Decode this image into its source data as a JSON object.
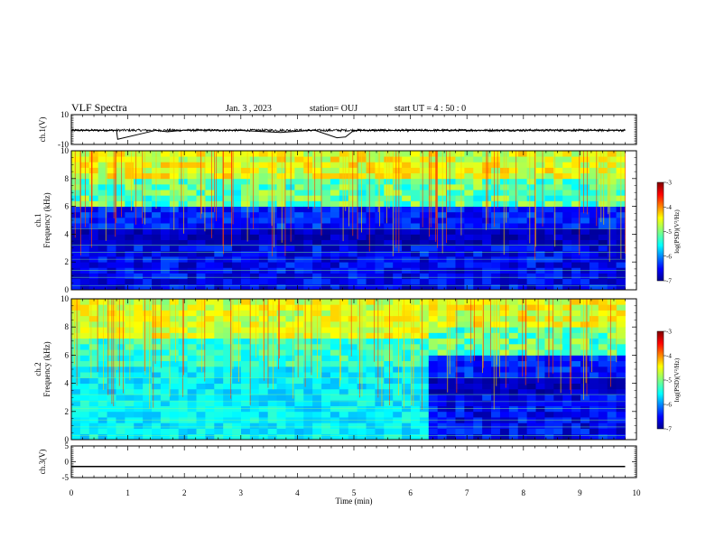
{
  "header": {
    "title": "VLF Spectra",
    "date": "Jan. 3 , 2023",
    "station": "station= OUJ",
    "start": "start UT = 4 : 50 : 0"
  },
  "chart_data": [
    {
      "type": "line",
      "panel": "ch1_waveform",
      "ylabel": "ch.1(V)",
      "ylim": [
        -10,
        10
      ],
      "yticks": [
        "10",
        "-10"
      ],
      "x": [
        0,
        0.8,
        0.82,
        1.5,
        1.7,
        2.0,
        3.0,
        3.7,
        4.3,
        4.7,
        4.85,
        5.0,
        6.2,
        7.5,
        8.5,
        9.3,
        9.8
      ],
      "values": [
        -0.5,
        -0.5,
        -6.5,
        -0.5,
        -1.5,
        -0.4,
        -0.6,
        -2.0,
        -0.4,
        -5.5,
        -5.0,
        -0.5,
        -0.6,
        -0.5,
        -0.4,
        -0.5,
        -0.5
      ]
    },
    {
      "type": "heatmap",
      "panel": "ch1_spectrogram",
      "ylabel": "ch.1\nFrequency (kHz)",
      "ylim": [
        0,
        10
      ],
      "yticks": [
        "0",
        "2",
        "4",
        "6",
        "8",
        "10"
      ],
      "colorbar": {
        "ticks": [
          "-3",
          "-4",
          "-5",
          "-6",
          "-7"
        ],
        "label": "log(PSD)(V²/Hz)",
        "range": [
          -7,
          -3
        ]
      },
      "bands_khz": [
        [
          0,
          1,
          -6.5
        ],
        [
          1,
          2,
          -6.8
        ],
        [
          2,
          3.2,
          -6.6
        ],
        [
          3.2,
          4.5,
          -6.9
        ],
        [
          4.5,
          6,
          -6.4
        ],
        [
          6,
          8,
          -5.0
        ],
        [
          8,
          10,
          -4.4
        ]
      ]
    },
    {
      "type": "heatmap",
      "panel": "ch2_spectrogram",
      "ylabel": "ch.2\nFrequency (kHz)",
      "ylim": [
        0,
        10
      ],
      "yticks": [
        "0",
        "2",
        "4",
        "6",
        "8",
        "10"
      ],
      "colorbar": {
        "ticks": [
          "-3",
          "-4",
          "-5",
          "-6",
          "-7"
        ],
        "label": "log(PSD)(V²/Hz)",
        "range": [
          -7,
          -3
        ]
      },
      "regime_change_min": 6.3
    },
    {
      "type": "line",
      "panel": "ch3_waveform",
      "ylabel": "ch.3(V)",
      "ylim": [
        -5,
        5
      ],
      "yticks": [
        "5",
        "0",
        "-5"
      ],
      "x": [
        0,
        9.8
      ],
      "values": [
        -1.5,
        -1.5
      ]
    }
  ],
  "xaxis": {
    "label": "Time (min)",
    "range": [
      0,
      10
    ],
    "ticks": [
      "0",
      "1",
      "2",
      "3",
      "4",
      "5",
      "6",
      "7",
      "8",
      "9",
      "10"
    ]
  },
  "colors": {
    "jet": [
      "#00008f",
      "#0000ff",
      "#0080ff",
      "#00ffff",
      "#80ff80",
      "#ffff00",
      "#ff8000",
      "#ff0000",
      "#800000"
    ]
  }
}
